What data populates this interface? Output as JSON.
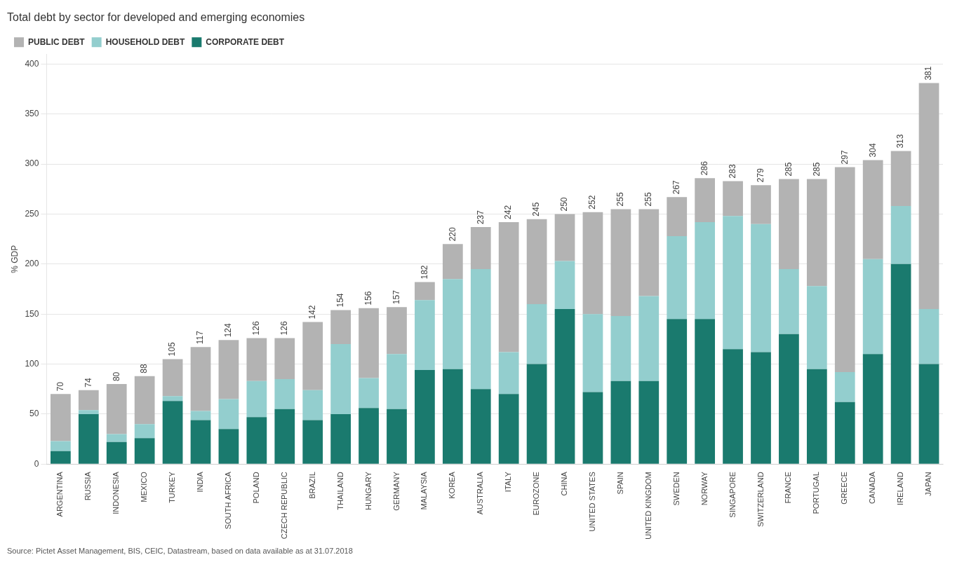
{
  "chart_data": {
    "type": "bar",
    "stacked": true,
    "title": "Total debt by sector for developed and emerging economies",
    "ylabel": "% GDP",
    "source": "Source: Pictet Asset Management, BIS, CEIC, Datastream, based on data available as at 31.07.2018",
    "categories": [
      "ARGENTINA",
      "RUSSIA",
      "INDONESIA",
      "MEXICO",
      "TURKEY",
      "INDIA",
      "SOUTH AFRICA",
      "POLAND",
      "CZECH REPUBLIC",
      "BRAZIL",
      "THAILAND",
      "HUNGARY",
      "GERMANY",
      "MALAYSIA",
      "KOREA",
      "AUSTRALIA",
      "ITALY",
      "EUROZONE",
      "CHINA",
      "UNITED STATES",
      "SPAIN",
      "UNITED KINGDOM",
      "SWEDEN",
      "NORWAY",
      "SINGAPORE",
      "SWITZERLAND",
      "FRANCE",
      "PORTUGAL",
      "GREECE",
      "CANADA",
      "IRELAND",
      "JAPAN"
    ],
    "series": [
      {
        "name": "CORPORATE DEBT",
        "color": "#1a7a6e",
        "values": [
          13,
          50,
          22,
          26,
          63,
          44,
          35,
          47,
          55,
          44,
          50,
          56,
          55,
          94,
          95,
          75,
          70,
          100,
          155,
          72,
          83,
          83,
          145,
          145,
          115,
          112,
          130,
          95,
          62,
          110,
          200,
          100
        ]
      },
      {
        "name": "HOUSEHOLD DEBT",
        "color": "#93cece",
        "values": [
          10,
          4,
          8,
          14,
          5,
          9,
          30,
          36,
          30,
          30,
          70,
          30,
          55,
          70,
          90,
          120,
          42,
          60,
          48,
          78,
          65,
          85,
          83,
          97,
          133,
          128,
          65,
          83,
          30,
          95,
          58,
          55
        ]
      },
      {
        "name": "PUBLIC DEBT",
        "color": "#b3b3b3",
        "values": [
          47,
          20,
          50,
          48,
          37,
          64,
          59,
          43,
          41,
          68,
          34,
          70,
          47,
          18,
          35,
          42,
          130,
          85,
          47,
          102,
          107,
          87,
          39,
          44,
          35,
          39,
          90,
          107,
          205,
          99,
          55,
          226
        ]
      }
    ],
    "totals": [
      70,
      74,
      80,
      88,
      105,
      117,
      124,
      126,
      126,
      142,
      154,
      156,
      157,
      182,
      220,
      237,
      242,
      245,
      250,
      252,
      255,
      255,
      267,
      286,
      283,
      279,
      285,
      285,
      297,
      304,
      313,
      381
    ],
    "ylim": [
      0,
      410
    ],
    "yticks": [
      0,
      50,
      100,
      150,
      200,
      250,
      300,
      350,
      400
    ],
    "grid": true,
    "legend": "upper left"
  }
}
